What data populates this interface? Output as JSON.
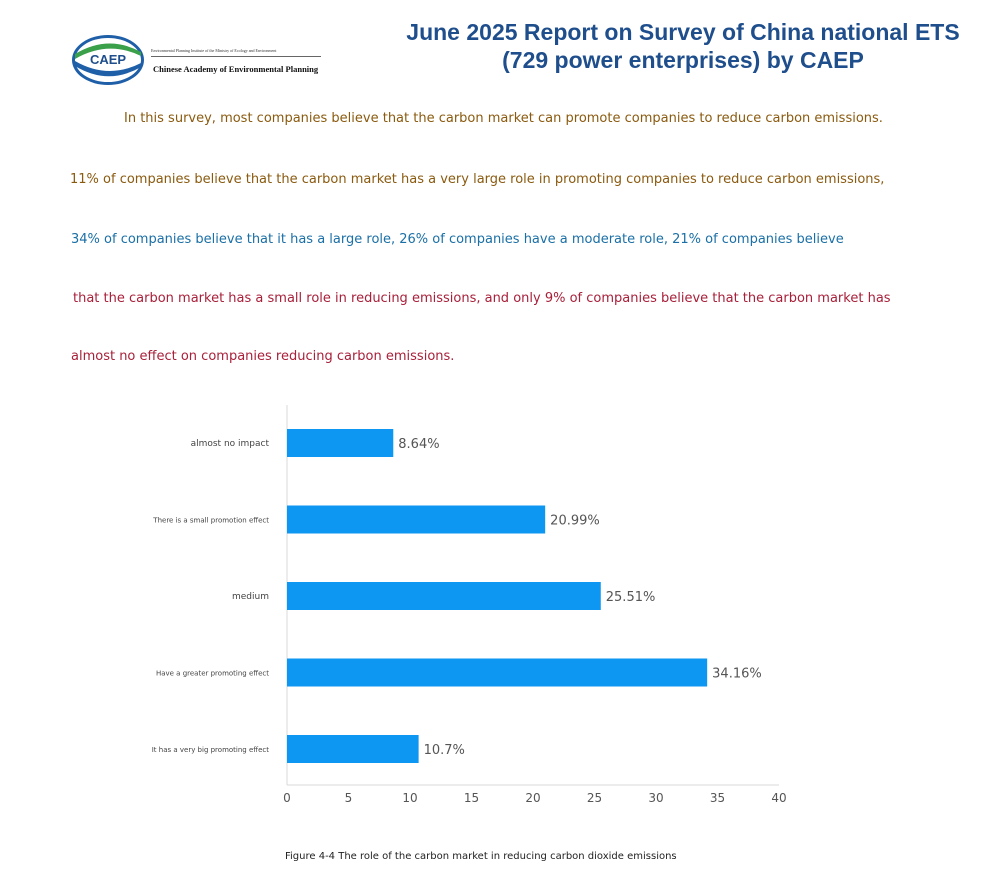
{
  "header": {
    "title_line1": "June 2025 Report on Survey of China national ETS",
    "title_line2": "(729 power enterprises) by CAEP",
    "logo": {
      "acronym": "CAEP",
      "subtitle": "Environmental Planning Institute of the Ministry of Ecology and Environment",
      "name": "Chinese Academy of Environmental Planning"
    }
  },
  "paragraphs": [
    "In this survey, most companies believe that the carbon market can promote companies to reduce carbon emissions.",
    "11% of companies believe that the carbon market has a very large role in promoting companies to reduce carbon emissions,",
    "34% of companies believe that it has a large role, 26% of companies have a moderate role, 21% of companies believe",
    "that the carbon market has a small role in reducing emissions, and only 9% of companies believe that the carbon market has",
    "almost no effect on companies reducing carbon emissions."
  ],
  "colors": {
    "bar": "#0d96f2",
    "title": "#1f4e8c",
    "para_brown": "#8a5a0f",
    "para_blue": "#1a6fa6",
    "para_red": "#a8203a"
  },
  "chart_data": {
    "type": "bar",
    "orientation": "horizontal",
    "categories": [
      "almost no impact",
      "There is a small promotion effect",
      "medium",
      "Have a greater promoting effect",
      "It has a very big promoting effect"
    ],
    "values": [
      8.64,
      20.99,
      25.51,
      34.16,
      10.7
    ],
    "value_labels": [
      "8.64%",
      "20.99%",
      "25.51%",
      "34.16%",
      "10.7%"
    ],
    "xlim": [
      0,
      40
    ],
    "xticks": [
      "0",
      "5",
      "10",
      "15",
      "20",
      "25",
      "30",
      "35",
      "40"
    ],
    "grid": false,
    "caption": "Figure 4-4 The role of the carbon market in reducing carbon dioxide emissions"
  }
}
